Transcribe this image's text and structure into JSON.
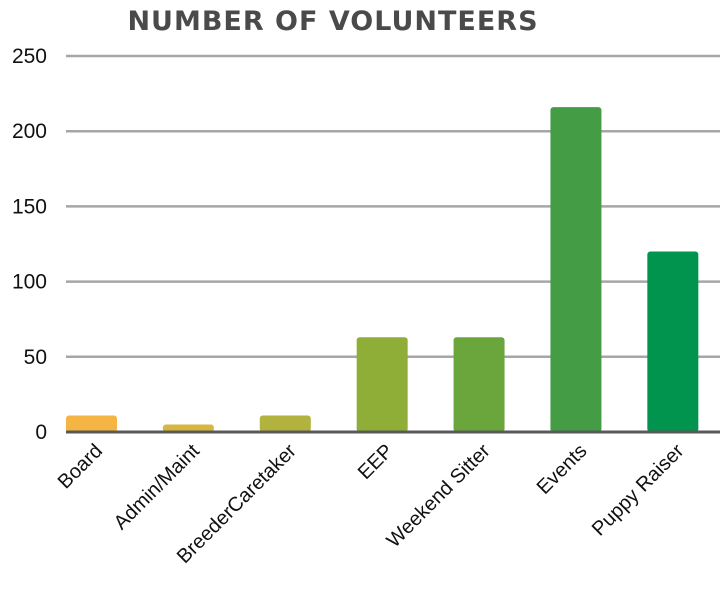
{
  "chart_data": {
    "type": "bar",
    "title": "NUMBER OF VOLUNTEERS",
    "categories": [
      "Board",
      "Admin/Maint",
      "BreederCaretaker",
      "EEP",
      "Weekend Sitter",
      "Events",
      "Puppy Raiser"
    ],
    "values": [
      11,
      5,
      11,
      63,
      63,
      216,
      120
    ],
    "colors": [
      "#f4b544",
      "#d7b740",
      "#b2b23e",
      "#8fae37",
      "#6aa63b",
      "#449c45",
      "#00944e"
    ],
    "ylim": [
      0,
      250
    ],
    "yticks": [
      0,
      50,
      100,
      150,
      200,
      250
    ],
    "ytick_labels": [
      "0",
      "50",
      "100",
      "150",
      "200",
      "250"
    ],
    "xlabel": "",
    "ylabel": "",
    "grid": true,
    "gridline_color": "#a6a6a6",
    "baseline_color": "#595959"
  }
}
